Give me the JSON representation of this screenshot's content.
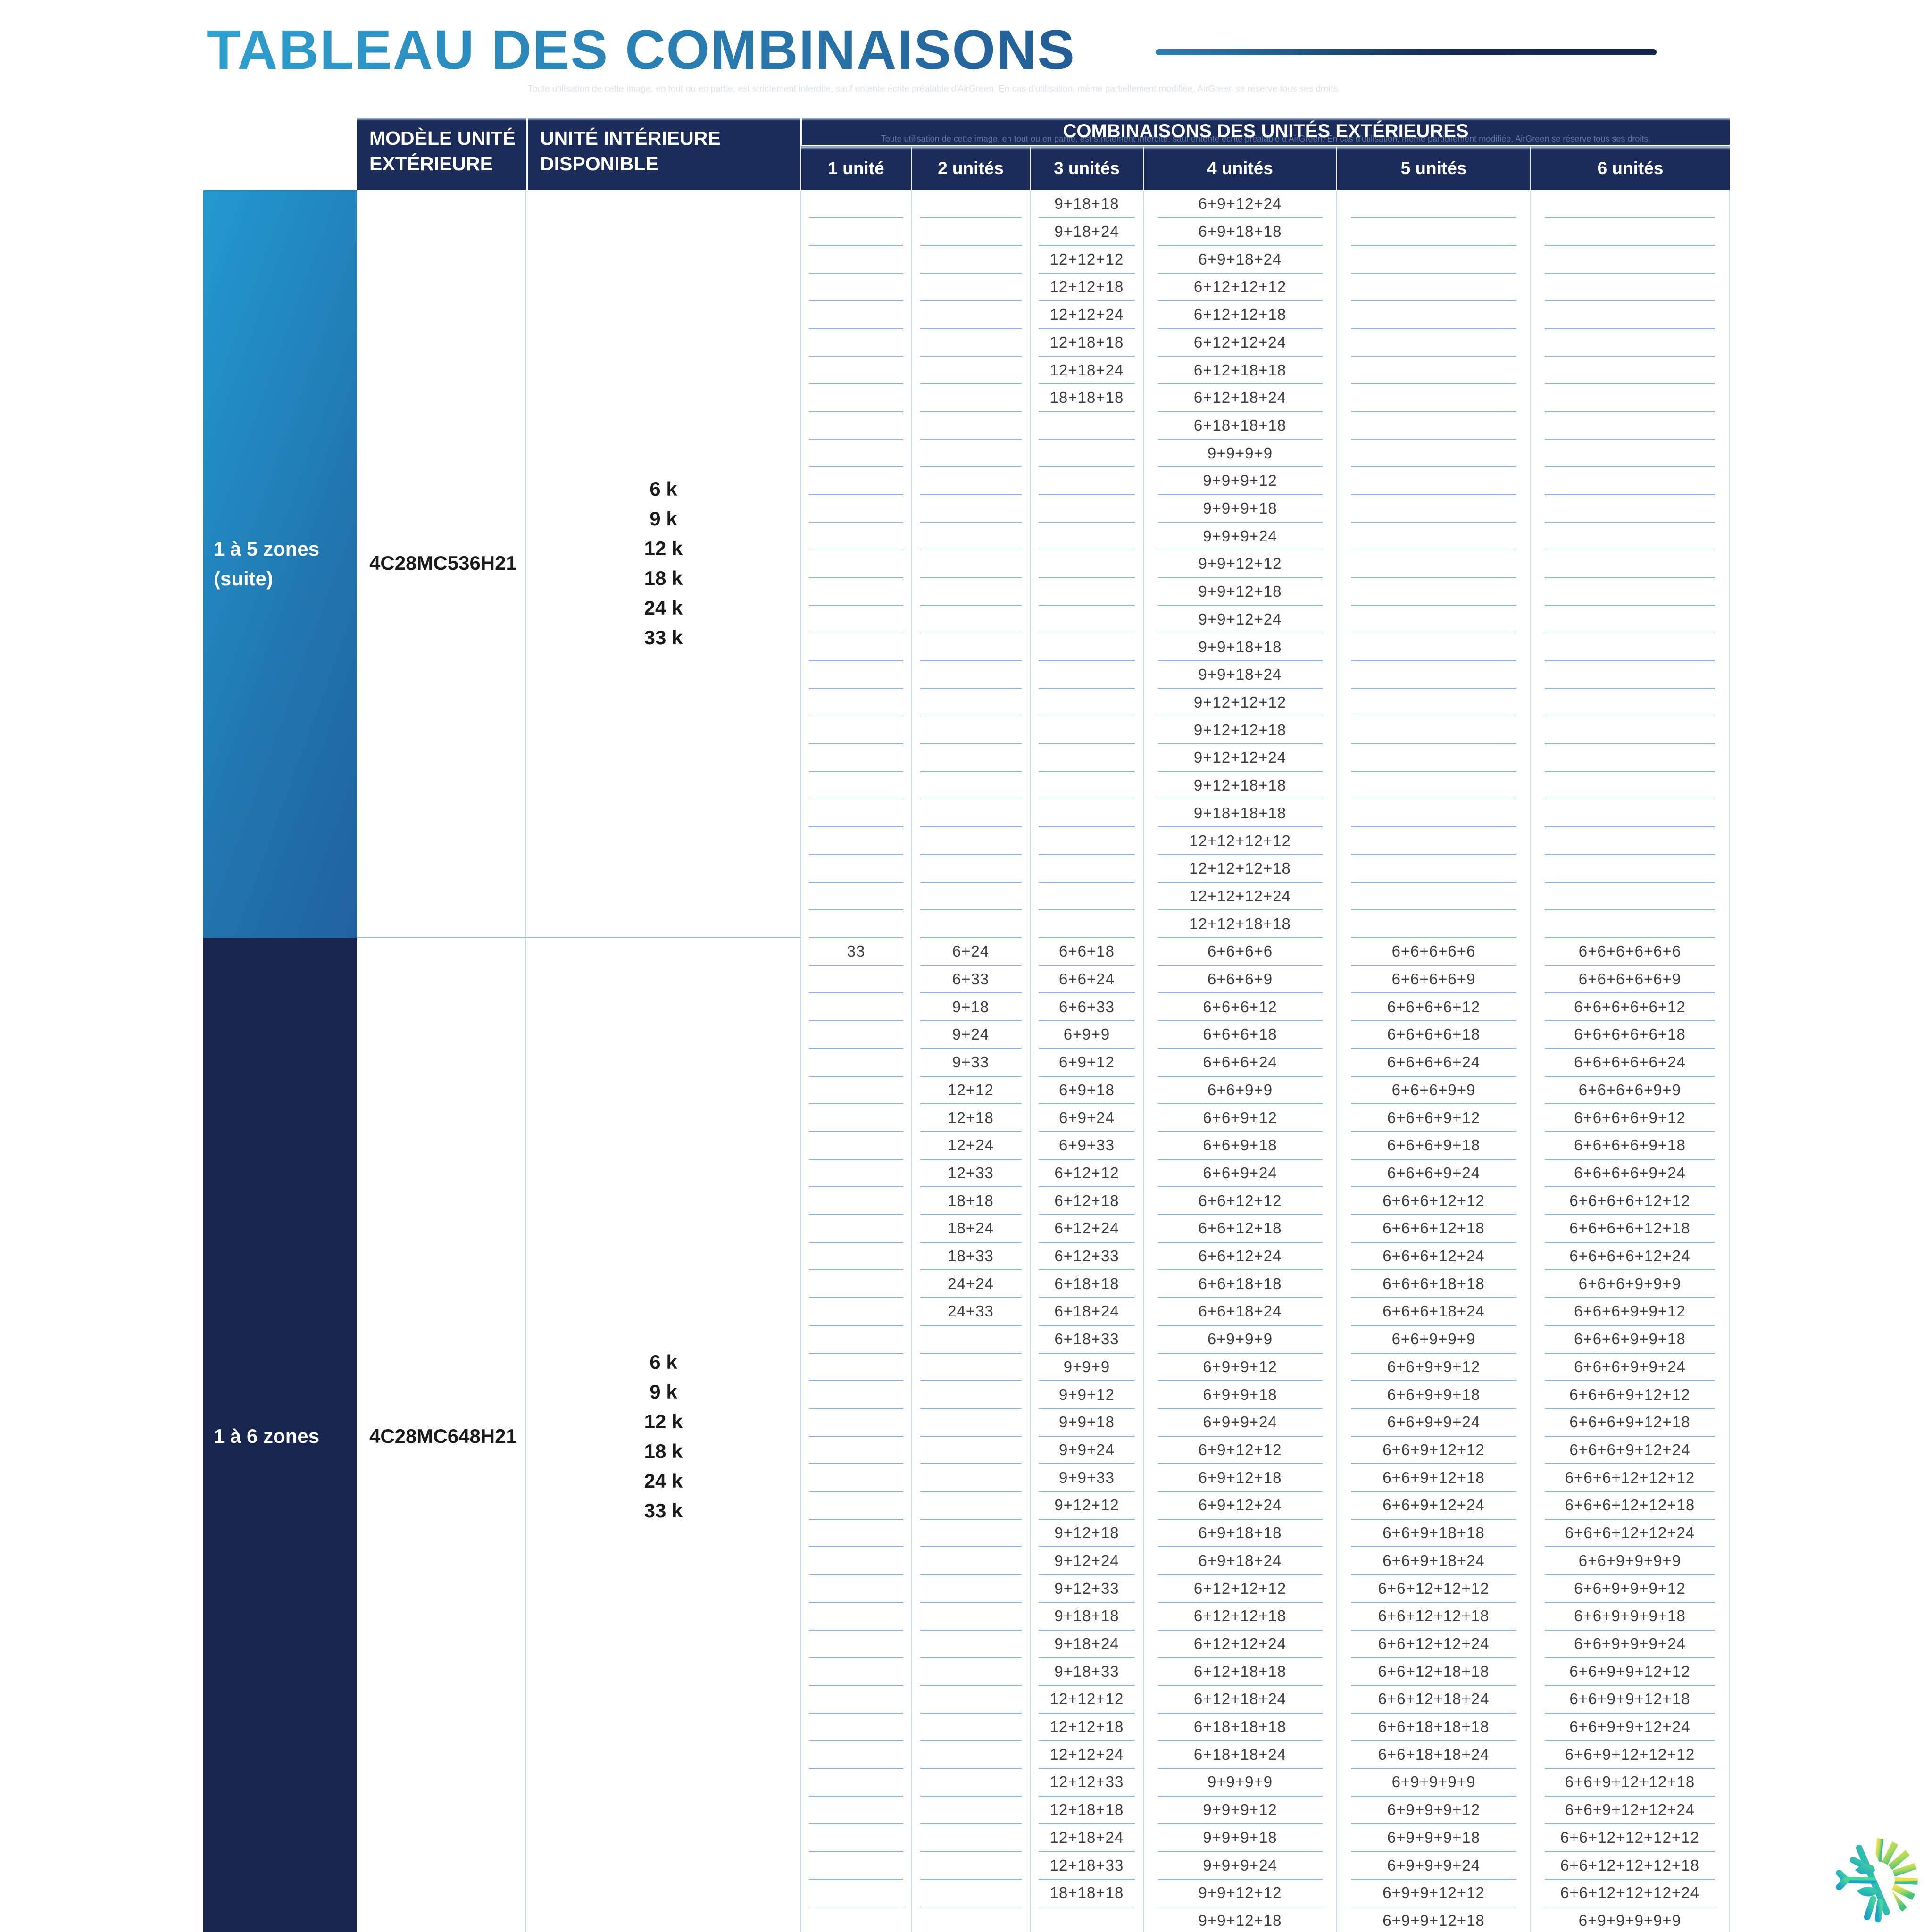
{
  "title": "TABLEAU DES COMBINAISONS",
  "watermark": "Toute utilisation de cette image, en tout ou en partie, est strictement interdite, sauf entente écrite préalable d'AirGreen. En cas d'utilisation, même partiellement modifiée, AirGreen se réserve tous ses droits.",
  "colors": {
    "header_navy": "#1b2c5a",
    "zone1_gradient_start": "#2399d1",
    "zone1_gradient_end": "#20629f",
    "zone2_navy": "#18264f",
    "row_separator": "#8fb3da",
    "column_line": "#ccdbed",
    "title_blue_light": "#2f9fd0",
    "title_blue_dark": "#235d95"
  },
  "logo": {
    "name": "airgreen-snowflake-sun-logo"
  },
  "table": {
    "headers": {
      "model": "MODÈLE UNITÉ EXTÉRIEURE",
      "indoor": "UNITÉ INTÉRIEURE DISPONIBLE",
      "combos": "COMBINAISONS DES UNITÉS EXTÉRIEURES",
      "units": [
        "1 unité",
        "2 unités",
        "3 unités",
        "4 unités",
        "5 unités",
        "6 unités"
      ]
    },
    "sections": [
      {
        "zone_label": "1 à 5 zones\n(suite)",
        "model": "4C28MC536H21",
        "indoor_units": [
          "6 k",
          "9 k",
          "12 k",
          "18 k",
          "24 k",
          "33 k"
        ],
        "rows": 27,
        "columns": {
          "c1": [],
          "c2": [],
          "c3": [
            "9+18+18",
            "9+18+24",
            "12+12+12",
            "12+12+18",
            "12+12+24",
            "12+18+18",
            "12+18+24",
            "18+18+18"
          ],
          "c4": [
            "6+9+12+24",
            "6+9+18+18",
            "6+9+18+24",
            "6+12+12+12",
            "6+12+12+18",
            "6+12+12+24",
            "6+12+18+18",
            "6+12+18+24",
            "6+18+18+18",
            "9+9+9+9",
            "9+9+9+12",
            "9+9+9+18",
            "9+9+9+24",
            "9+9+12+12",
            "9+9+12+18",
            "9+9+12+24",
            "9+9+18+18",
            "9+9+18+24",
            "9+12+12+12",
            "9+12+12+18",
            "9+12+12+24",
            "9+12+18+18",
            "9+18+18+18",
            "12+12+12+12",
            "12+12+12+18",
            "12+12+12+24",
            "12+12+18+18"
          ],
          "c5": [],
          "c6": []
        }
      },
      {
        "zone_label": "1 à 6 zones",
        "model": "4C28MC648H21",
        "indoor_units": [
          "6 k",
          "9 k",
          "12 k",
          "18 k",
          "24 k",
          "33 k"
        ],
        "rows": 36,
        "columns": {
          "c1": [
            "33"
          ],
          "c2": [
            "6+24",
            "6+33",
            "9+18",
            "9+24",
            "9+33",
            "12+12",
            "12+18",
            "12+24",
            "12+33",
            "18+18",
            "18+24",
            "18+33",
            "24+24",
            "24+33"
          ],
          "c3": [
            "6+6+18",
            "6+6+24",
            "6+6+33",
            "6+9+9",
            "6+9+12",
            "6+9+18",
            "6+9+24",
            "6+9+33",
            "6+12+12",
            "6+12+18",
            "6+12+24",
            "6+12+33",
            "6+18+18",
            "6+18+24",
            "6+18+33",
            "9+9+9",
            "9+9+12",
            "9+9+18",
            "9+9+24",
            "9+9+33",
            "9+12+12",
            "9+12+18",
            "9+12+24",
            "9+12+33",
            "9+18+18",
            "9+18+24",
            "9+18+33",
            "12+12+12",
            "12+12+18",
            "12+12+24",
            "12+12+33",
            "12+18+18",
            "12+18+24",
            "12+18+33",
            "18+18+18"
          ],
          "c4": [
            "6+6+6+6",
            "6+6+6+9",
            "6+6+6+12",
            "6+6+6+18",
            "6+6+6+24",
            "6+6+9+9",
            "6+6+9+12",
            "6+6+9+18",
            "6+6+9+24",
            "6+6+12+12",
            "6+6+12+18",
            "6+6+12+24",
            "6+6+18+18",
            "6+6+18+24",
            "6+9+9+9",
            "6+9+9+12",
            "6+9+9+18",
            "6+9+9+24",
            "6+9+12+12",
            "6+9+12+18",
            "6+9+12+24",
            "6+9+18+18",
            "6+9+18+24",
            "6+12+12+12",
            "6+12+12+18",
            "6+12+12+24",
            "6+12+18+18",
            "6+12+18+24",
            "6+18+18+18",
            "6+18+18+24",
            "9+9+9+9",
            "9+9+9+12",
            "9+9+9+18",
            "9+9+9+24",
            "9+9+12+12",
            "9+9+12+18"
          ],
          "c5": [
            "6+6+6+6+6",
            "6+6+6+6+9",
            "6+6+6+6+12",
            "6+6+6+6+18",
            "6+6+6+6+24",
            "6+6+6+9+9",
            "6+6+6+9+12",
            "6+6+6+9+18",
            "6+6+6+9+24",
            "6+6+6+12+12",
            "6+6+6+12+18",
            "6+6+6+12+24",
            "6+6+6+18+18",
            "6+6+6+18+24",
            "6+6+9+9+9",
            "6+6+9+9+12",
            "6+6+9+9+18",
            "6+6+9+9+24",
            "6+6+9+12+12",
            "6+6+9+12+18",
            "6+6+9+12+24",
            "6+6+9+18+18",
            "6+6+9+18+24",
            "6+6+12+12+12",
            "6+6+12+12+18",
            "6+6+12+12+24",
            "6+6+12+18+18",
            "6+6+12+18+24",
            "6+6+18+18+18",
            "6+6+18+18+24",
            "6+9+9+9+9",
            "6+9+9+9+12",
            "6+9+9+9+18",
            "6+9+9+9+24",
            "6+9+9+12+12",
            "6+9+9+12+18"
          ],
          "c6": [
            "6+6+6+6+6+6",
            "6+6+6+6+6+9",
            "6+6+6+6+6+12",
            "6+6+6+6+6+18",
            "6+6+6+6+6+24",
            "6+6+6+6+9+9",
            "6+6+6+6+9+12",
            "6+6+6+6+9+18",
            "6+6+6+6+9+24",
            "6+6+6+6+12+12",
            "6+6+6+6+12+18",
            "6+6+6+6+12+24",
            "6+6+6+9+9+9",
            "6+6+6+9+9+12",
            "6+6+6+9+9+18",
            "6+6+6+9+9+24",
            "6+6+6+9+12+12",
            "6+6+6+9+12+18",
            "6+6+6+9+12+24",
            "6+6+6+12+12+12",
            "6+6+6+12+12+18",
            "6+6+6+12+12+24",
            "6+6+9+9+9+9",
            "6+6+9+9+9+12",
            "6+6+9+9+9+18",
            "6+6+9+9+9+24",
            "6+6+9+9+12+12",
            "6+6+9+9+12+18",
            "6+6+9+9+12+24",
            "6+6+9+12+12+12",
            "6+6+9+12+12+18",
            "6+6+9+12+12+24",
            "6+6+12+12+12+12",
            "6+6+12+12+12+18",
            "6+6+12+12+12+24",
            "6+9+9+9+9+9"
          ]
        }
      }
    ]
  }
}
